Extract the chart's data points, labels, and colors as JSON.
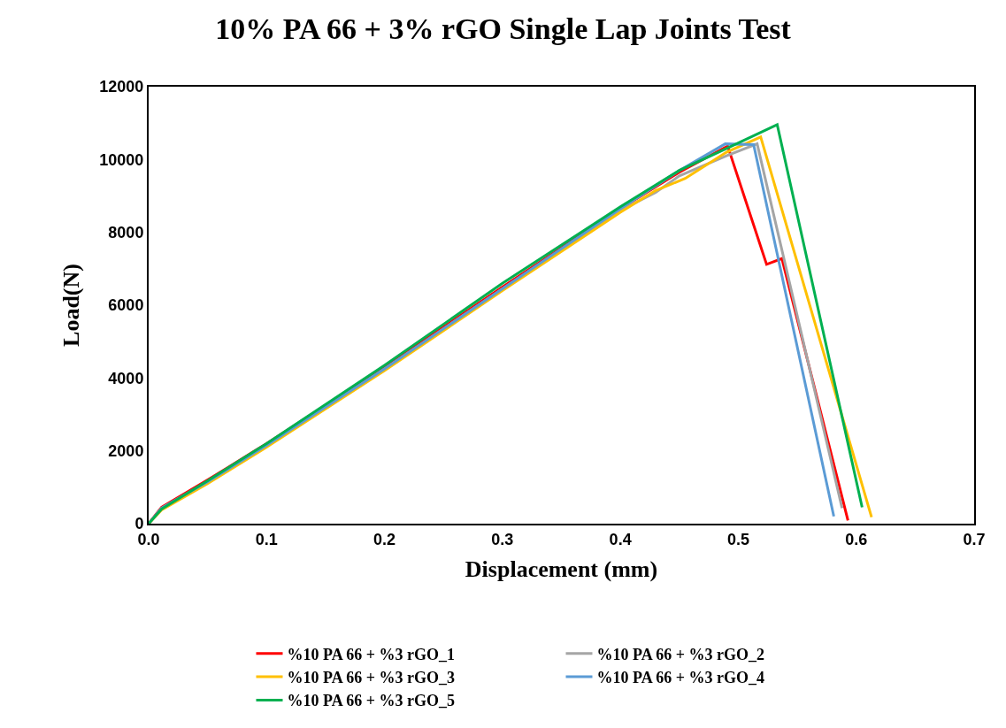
{
  "chart_data": {
    "type": "line",
    "title": "10% PA 66 + 3% rGO Single Lap Joints Test",
    "xlabel": "Displacement (mm)",
    "ylabel": "Load(N)",
    "xlim": [
      0,
      0.7
    ],
    "xticks": [
      {
        "value": 0,
        "label": "0.0"
      },
      0.1,
      0.2,
      0.3,
      0.4,
      0.5,
      0.6,
      0.7
    ],
    "ylim": [
      0,
      12000
    ],
    "yticks": [
      0,
      2000,
      4000,
      6000,
      8000,
      10000,
      12000
    ],
    "legend": "bottom",
    "marker": "none",
    "line_style": "solid",
    "series": [
      {
        "name": "%10 PA 66 + %3 rGO_1",
        "color": "#ff0000",
        "x": [
          0,
          0.011,
          0.05,
          0.1,
          0.2,
          0.3,
          0.4,
          0.45,
          0.491,
          0.524,
          0.537,
          0.593
        ],
        "values": [
          0,
          450,
          1200,
          2200,
          4300,
          6500,
          8650,
          9650,
          10370,
          7120,
          7280,
          90
        ]
      },
      {
        "name": "%10 PA 66 + %3 rGO_2",
        "color": "#a5a5a5",
        "x": [
          0,
          0.011,
          0.05,
          0.1,
          0.2,
          0.3,
          0.4,
          0.43,
          0.45,
          0.49,
          0.516,
          0.588
        ],
        "values": [
          0,
          420,
          1150,
          2150,
          4250,
          6450,
          8600,
          9100,
          9550,
          10100,
          10430,
          430
        ]
      },
      {
        "name": "%10 PA 66 + %3 rGO_3",
        "color": "#ffc000",
        "x": [
          0,
          0.011,
          0.05,
          0.1,
          0.2,
          0.3,
          0.4,
          0.43,
          0.455,
          0.49,
          0.519,
          0.613
        ],
        "values": [
          0,
          380,
          1100,
          2100,
          4200,
          6400,
          8550,
          9150,
          9480,
          10200,
          10620,
          180
        ]
      },
      {
        "name": "%10 PA 66 + %3 rGO_4",
        "color": "#5b9bd5",
        "x": [
          0,
          0.011,
          0.05,
          0.1,
          0.2,
          0.3,
          0.4,
          0.45,
          0.489,
          0.513,
          0.581
        ],
        "values": [
          0,
          430,
          1150,
          2150,
          4250,
          6450,
          8650,
          9700,
          10430,
          10410,
          200
        ]
      },
      {
        "name": "%10 PA 66 + %3 rGO_5",
        "color": "#00b050",
        "x": [
          0,
          0.011,
          0.05,
          0.1,
          0.2,
          0.3,
          0.4,
          0.45,
          0.49,
          0.533,
          0.605
        ],
        "values": [
          0,
          400,
          1180,
          2200,
          4350,
          6600,
          8700,
          9700,
          10300,
          10960,
          450
        ]
      }
    ]
  }
}
